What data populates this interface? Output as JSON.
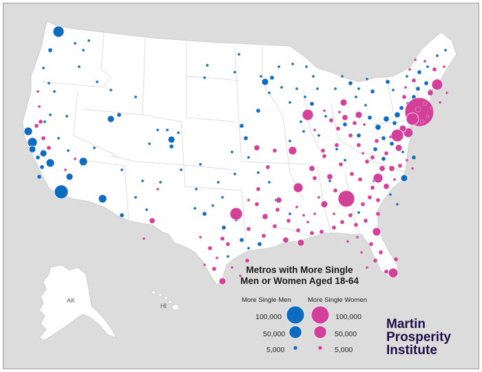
{
  "map": {
    "state_labels": [
      "AK",
      "HI"
    ],
    "colors": {
      "men": "#0f6bbf",
      "women": "#d2409a",
      "land": "#ffffff",
      "background": "#dcdcdc",
      "borders": "#cfcfcf"
    },
    "size_reference": 100000
  },
  "legend": {
    "title_line1": "Metros with More Single",
    "title_line2": "Men or Women Aged 18-64",
    "men_header": "More Single Men",
    "women_header": "More Single Women",
    "sizes": [
      {
        "left_label": "100,000",
        "right_label": "100,000",
        "value": 100000
      },
      {
        "left_label": "50,000",
        "right_label": "50,000",
        "value": 50000
      },
      {
        "left_label": "5,000",
        "right_label": "5,000",
        "value": 5000
      }
    ]
  },
  "brand": {
    "line1": "Martin",
    "line2": "Prosperity",
    "line3": "Institute"
  }
}
